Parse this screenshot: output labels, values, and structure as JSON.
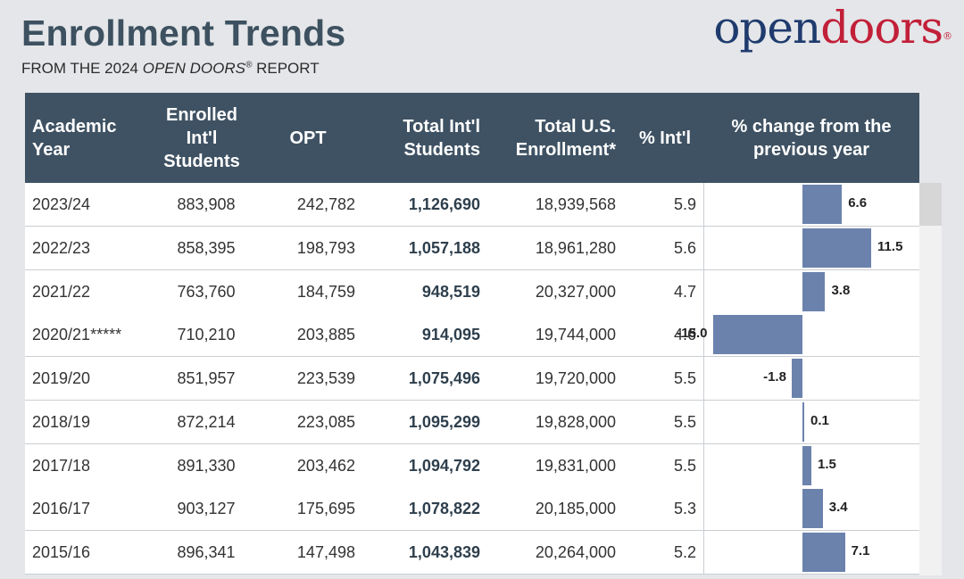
{
  "header": {
    "title": "Enrollment Trends",
    "subtitle_prefix": "FROM THE 2024 ",
    "subtitle_italic": "OPEN DOORS",
    "subtitle_reg": "®",
    "subtitle_suffix": " REPORT"
  },
  "logo": {
    "open": "open",
    "doors": "doors",
    "reg": "®"
  },
  "columns": [
    "Academic\nYear",
    "Enrolled\nInt'l\nStudents",
    "OPT",
    "Total Int'l\nStudents",
    "Total U.S.\nEnrollment*",
    "% Int'l",
    "% change from the\nprevious year"
  ],
  "rows": [
    {
      "year": "2023/24",
      "enrolled": "883,908",
      "opt": "242,782",
      "total": "1,126,690",
      "us": "18,939,568",
      "pct": "5.9",
      "change_label": "6.6"
    },
    {
      "year": "2022/23",
      "enrolled": "858,395",
      "opt": "198,793",
      "total": "1,057,188",
      "us": "18,961,280",
      "pct": "5.6",
      "change_label": "11.5"
    },
    {
      "year": "2021/22",
      "enrolled": "763,760",
      "opt": "184,759",
      "total": "948,519",
      "us": "20,327,000",
      "pct": "4.7",
      "change_label": "3.8"
    },
    {
      "year": "2020/21*****",
      "enrolled": "710,210",
      "opt": "203,885",
      "total": "914,095",
      "us": "19,744,000",
      "pct": "4.6",
      "change_label": "-15.0"
    },
    {
      "year": "2019/20",
      "enrolled": "851,957",
      "opt": "223,539",
      "total": "1,075,496",
      "us": "19,720,000",
      "pct": "5.5",
      "change_label": "-1.8"
    },
    {
      "year": "2018/19",
      "enrolled": "872,214",
      "opt": "223,085",
      "total": "1,095,299",
      "us": "19,828,000",
      "pct": "5.5",
      "change_label": "0.1"
    },
    {
      "year": "2017/18",
      "enrolled": "891,330",
      "opt": "203,462",
      "total": "1,094,792",
      "us": "19,831,000",
      "pct": "5.5",
      "change_label": "1.5"
    },
    {
      "year": "2016/17",
      "enrolled": "903,127",
      "opt": "175,695",
      "total": "1,078,822",
      "us": "20,185,000",
      "pct": "5.3",
      "change_label": "3.4"
    },
    {
      "year": "2015/16",
      "enrolled": "896,341",
      "opt": "147,498",
      "total": "1,043,839",
      "us": "20,264,000",
      "pct": "5.2",
      "change_label": "7.1"
    }
  ],
  "chart_data": {
    "type": "bar",
    "categories": [
      "2023/24",
      "2022/23",
      "2021/22",
      "2020/21*****",
      "2019/20",
      "2018/19",
      "2017/18",
      "2016/17",
      "2015/16"
    ],
    "values": [
      6.6,
      11.5,
      3.8,
      -15.0,
      -1.8,
      0.1,
      1.5,
      3.4,
      7.1
    ],
    "title": "% change from the previous year",
    "orientation": "horizontal",
    "bar_color": "#6b82ad",
    "grid": false
  },
  "colors": {
    "header_bg": "#3f5263",
    "title": "#3d5160",
    "logo_open": "#1f3b6e",
    "logo_doors": "#c21f39",
    "bar": "#6b82ad"
  }
}
